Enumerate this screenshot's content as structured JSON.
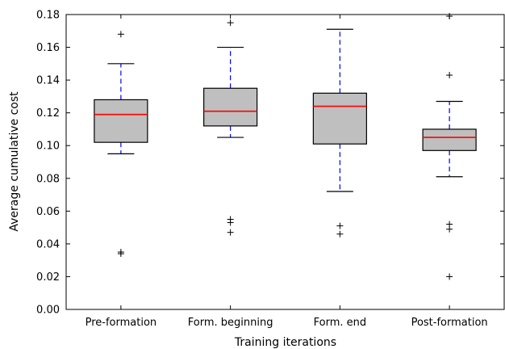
{
  "chart_data": {
    "type": "box",
    "title": "",
    "xlabel": "Training iterations",
    "ylabel": "Average cumulative cost",
    "ylim": [
      0,
      0.18
    ],
    "yticks": [
      "0.00",
      "0.02",
      "0.04",
      "0.06",
      "0.08",
      "0.10",
      "0.12",
      "0.14",
      "0.16",
      "0.18"
    ],
    "grid": false,
    "categories": [
      "Pre-formation",
      "Form. beginning",
      "Form. end",
      "Post-formation"
    ],
    "boxes": [
      {
        "q1": 0.102,
        "median": 0.119,
        "q3": 0.128,
        "whisker_low": 0.095,
        "whisker_high": 0.15,
        "outliers": [
          0.168,
          0.035,
          0.034
        ]
      },
      {
        "q1": 0.112,
        "median": 0.121,
        "q3": 0.135,
        "whisker_low": 0.105,
        "whisker_high": 0.16,
        "outliers": [
          0.175,
          0.055,
          0.053,
          0.047
        ]
      },
      {
        "q1": 0.101,
        "median": 0.124,
        "q3": 0.132,
        "whisker_low": 0.072,
        "whisker_high": 0.171,
        "outliers": [
          0.051,
          0.046
        ]
      },
      {
        "q1": 0.097,
        "median": 0.105,
        "q3": 0.11,
        "whisker_low": 0.081,
        "whisker_high": 0.127,
        "outliers": [
          0.179,
          0.143,
          0.052,
          0.049,
          0.02
        ]
      }
    ],
    "colors": {
      "box_fill": "#bfbfbf",
      "box_edge": "#000000",
      "median": "#ff0000",
      "whisker": "#0000ff",
      "cap": "#000000",
      "outlier": "#000000"
    }
  }
}
